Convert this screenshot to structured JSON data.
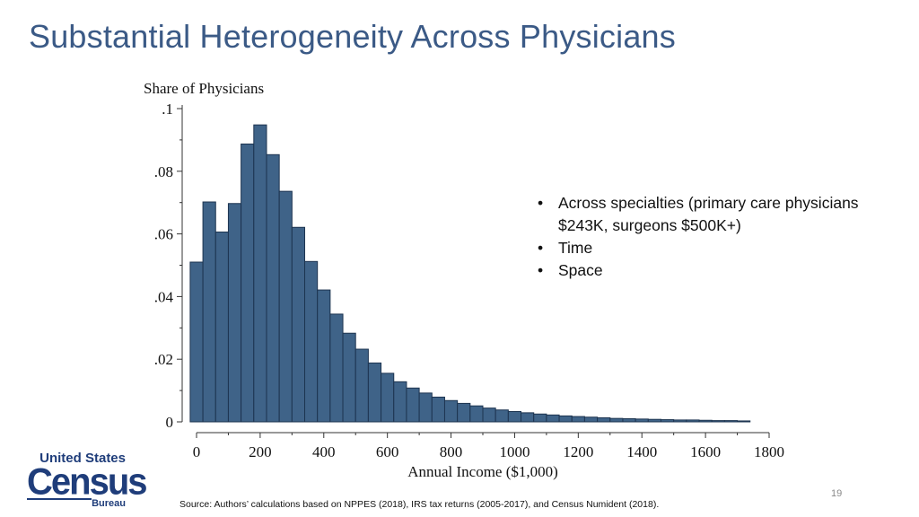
{
  "slide": {
    "title": "Substantial Heterogeneity Across Physicians",
    "bullets": [
      "Across specialties (primary care physicians $243K, surgeons $500K+)",
      "Time",
      "Space"
    ],
    "source": "Source: Authors’ calculations based on NPPES (2018), IRS tax returns (2005-2017), and Census Numident (2018).",
    "page_number": "19",
    "logo": {
      "line1": "United States",
      "line2": "Census",
      "line3": "Bureau"
    }
  },
  "chart_data": {
    "type": "bar",
    "title": "",
    "ylabel": "Share of Physicians",
    "xlabel": "Annual Income ($1,000)",
    "xlim": [
      -25,
      1800
    ],
    "ylim": [
      0,
      0.1
    ],
    "bin_width": 40,
    "x": [
      0,
      40,
      80,
      120,
      160,
      200,
      240,
      280,
      320,
      360,
      400,
      440,
      480,
      520,
      560,
      600,
      640,
      680,
      720,
      760,
      800,
      840,
      880,
      920,
      960,
      1000,
      1040,
      1080,
      1120,
      1160,
      1200,
      1240,
      1280,
      1320,
      1360,
      1400,
      1440,
      1480,
      1520,
      1560,
      1600,
      1640,
      1680,
      1720
    ],
    "values": [
      0.051,
      0.0702,
      0.0606,
      0.0697,
      0.0887,
      0.0948,
      0.0853,
      0.0736,
      0.0621,
      0.0512,
      0.0421,
      0.0344,
      0.0283,
      0.0232,
      0.0188,
      0.0155,
      0.0128,
      0.0108,
      0.0092,
      0.0079,
      0.0068,
      0.0059,
      0.0051,
      0.0044,
      0.0038,
      0.0033,
      0.0029,
      0.0025,
      0.0022,
      0.0019,
      0.0017,
      0.0015,
      0.0013,
      0.0011,
      0.001,
      0.0009,
      0.0008,
      0.0007,
      0.0006,
      0.0006,
      0.0005,
      0.0004,
      0.0004,
      0.0003
    ],
    "xticks": [
      0,
      200,
      400,
      600,
      800,
      1000,
      1200,
      1400,
      1600,
      1800
    ],
    "xtick_labels": [
      "0",
      "200",
      "400",
      "600",
      "800",
      "1000",
      "1200",
      "1400",
      "1600",
      "1800"
    ],
    "yticks": [
      0,
      0.02,
      0.04,
      0.06,
      0.08,
      0.1
    ],
    "ytick_labels": [
      "0",
      ".02",
      ".04",
      ".06",
      ".08",
      ".1"
    ],
    "grid": false,
    "legend": "none",
    "colors": {
      "bar_fill": "#3f6388",
      "bar_edge": "#1d3450",
      "axis": "#333333"
    }
  }
}
